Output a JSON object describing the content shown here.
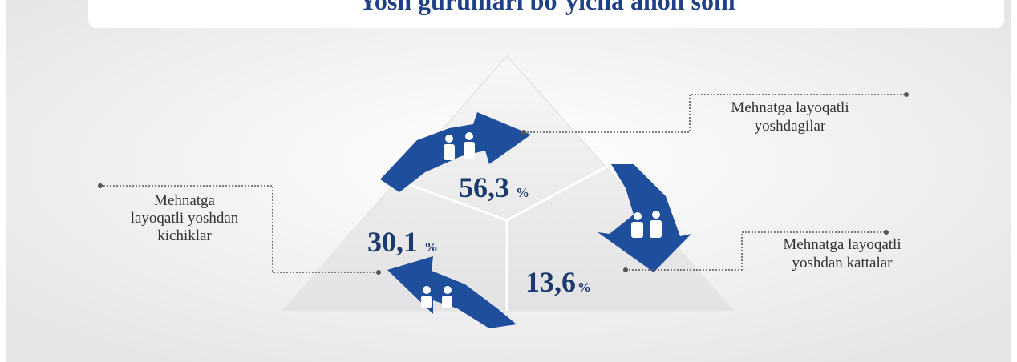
{
  "header": {
    "title": "Yosh guruhlari bo`yicha aholi soni"
  },
  "segments": [
    {
      "label_lines": [
        "Mehnatga layoqatli",
        "yoshdagilar"
      ],
      "value": "56,3",
      "unit": "%"
    },
    {
      "label_lines": [
        "Mehnatga",
        "layoqatli yoshdan",
        "kichiklar"
      ],
      "value": "30,1",
      "unit": "%"
    },
    {
      "label_lines": [
        "Mehnatga layoqatli",
        "yoshdan kattalar"
      ],
      "value": "13,6",
      "unit": "%"
    }
  ]
}
